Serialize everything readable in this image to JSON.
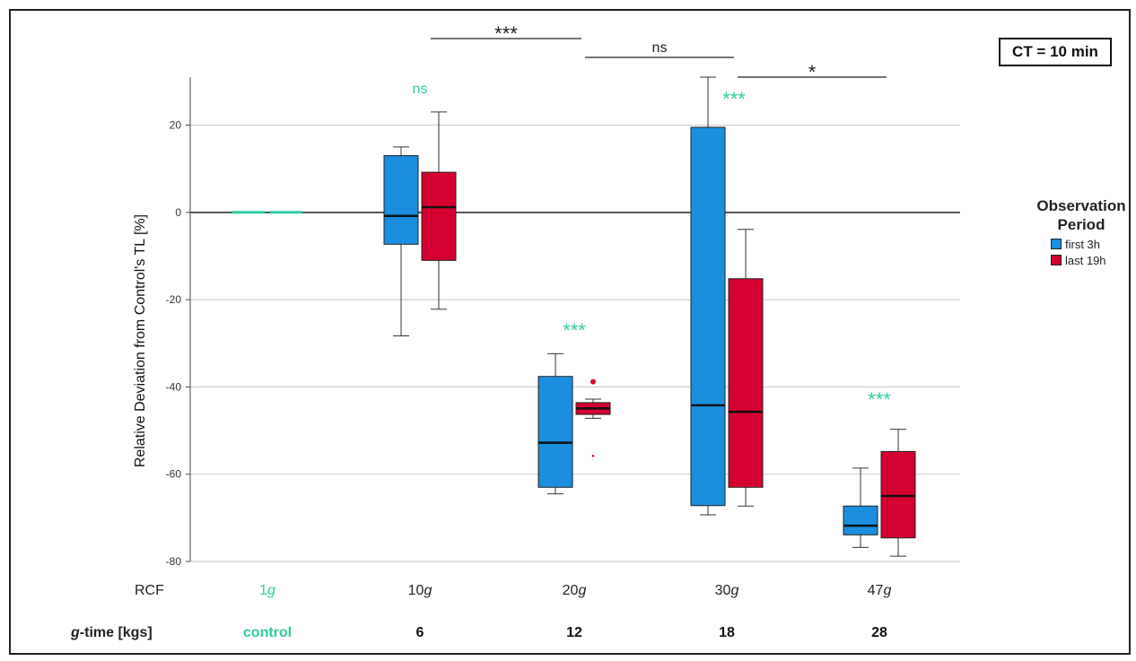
{
  "chart_data": {
    "type": "box",
    "ylabel": "Relative Deviation from Control's TL [%]",
    "ylim": [
      -80,
      31
    ],
    "yticks": [
      20,
      0,
      -20,
      -40,
      -60,
      -80
    ],
    "grid": true,
    "legend": {
      "title": "Observation Period",
      "position": "right",
      "entries": [
        {
          "name": "first 3h",
          "color": "#1a8fe0"
        },
        {
          "name": "last 19h",
          "color": "#d4002f"
        }
      ]
    },
    "annotation": "CT = 10 min",
    "row_labels": {
      "rcf": "RCF",
      "gtime_italic": "g",
      "gtime_rest": "-time [kgs]"
    },
    "categories": [
      {
        "rcf_num": "1",
        "rcf_unit": "g",
        "gtime": "control",
        "control": true
      },
      {
        "rcf_num": "10",
        "rcf_unit": "g",
        "gtime": "6"
      },
      {
        "rcf_num": "20",
        "rcf_unit": "g",
        "gtime": "12"
      },
      {
        "rcf_num": "30",
        "rcf_unit": "g",
        "gtime": "18"
      },
      {
        "rcf_num": "47",
        "rcf_unit": "g",
        "gtime": "28"
      }
    ],
    "series": [
      {
        "name": "first 3h",
        "boxes": [
          {
            "category": 0,
            "min": 0,
            "q1": 0,
            "median": 0,
            "q3": 0,
            "max": 0,
            "collapsed": true
          },
          {
            "category": 1,
            "min": -28.3,
            "q1": -7.3,
            "median": -0.8,
            "q3": 13.0,
            "max": 15.0
          },
          {
            "category": 2,
            "min": -64.5,
            "q1": -63.0,
            "median": -52.8,
            "q3": -37.6,
            "max": -32.4
          },
          {
            "category": 3,
            "min": -69.3,
            "q1": -67.2,
            "median": -44.2,
            "q3": 19.5,
            "max": 31.0
          },
          {
            "category": 4,
            "min": -76.8,
            "q1": -73.9,
            "median": -71.8,
            "q3": -67.3,
            "max": -58.6
          }
        ]
      },
      {
        "name": "last 19h",
        "boxes": [
          {
            "category": 0,
            "min": 0,
            "q1": 0,
            "median": 0,
            "q3": 0,
            "max": 0,
            "collapsed": true
          },
          {
            "category": 1,
            "min": -22.2,
            "q1": -11.0,
            "median": 1.2,
            "q3": 9.2,
            "max": 23.0
          },
          {
            "category": 2,
            "min": -47.2,
            "q1": -46.3,
            "median": -44.9,
            "q3": -43.6,
            "max": -42.8,
            "outliers": [
              {
                "y": -38.8,
                "kind": "circle"
              },
              {
                "y": -55.8,
                "kind": "star"
              }
            ]
          },
          {
            "category": 3,
            "min": -67.3,
            "q1": -63.0,
            "median": -45.7,
            "q3": -15.2,
            "max": -3.9
          },
          {
            "category": 4,
            "min": -78.8,
            "q1": -74.6,
            "median": -65.0,
            "q3": -54.8,
            "max": -49.7
          }
        ]
      }
    ],
    "within_group_significance": [
      {
        "category": 1,
        "label": "ns"
      },
      {
        "category": 2,
        "label": "***"
      },
      {
        "category": 3,
        "label": "***"
      },
      {
        "category": 4,
        "label": "***"
      }
    ],
    "between_group_significance": [
      {
        "from": 1,
        "to": 2,
        "label": "***"
      },
      {
        "from": 2,
        "to": 3,
        "label": "ns"
      },
      {
        "from": 3,
        "to": 4,
        "label": "*"
      }
    ]
  }
}
